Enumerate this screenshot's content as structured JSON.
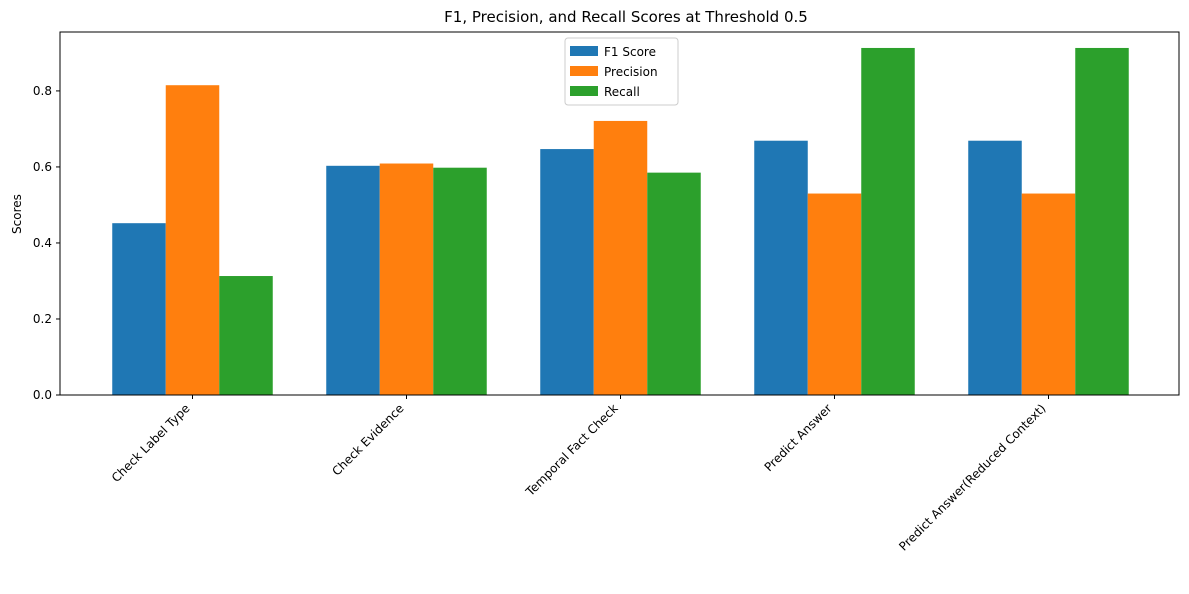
{
  "chart_data": {
    "type": "bar",
    "title": "F1, Precision, and Recall Scores at Threshold 0.5",
    "xlabel": "",
    "ylabel": "Scores",
    "categories": [
      "Check Label Type",
      "Check Evidence",
      "Temporal Fact Check",
      "Predict Answer",
      "Predict Answer(Reduced Context)"
    ],
    "series": [
      {
        "name": "F1 Score",
        "color": "#1f77b4",
        "values": [
          0.452,
          0.603,
          0.647,
          0.669,
          0.669
        ]
      },
      {
        "name": "Precision",
        "color": "#ff7f0e",
        "values": [
          0.815,
          0.609,
          0.721,
          0.53,
          0.53
        ]
      },
      {
        "name": "Recall",
        "color": "#2ca02c",
        "values": [
          0.313,
          0.598,
          0.585,
          0.913,
          0.913
        ]
      }
    ],
    "ylim": [
      0,
      0.955
    ],
    "yticks": [
      0.0,
      0.2,
      0.4,
      0.6,
      0.8
    ],
    "ytick_labels": [
      "0.0",
      "0.2",
      "0.4",
      "0.6",
      "0.8"
    ],
    "grid": false,
    "legend_position": "top-center"
  }
}
